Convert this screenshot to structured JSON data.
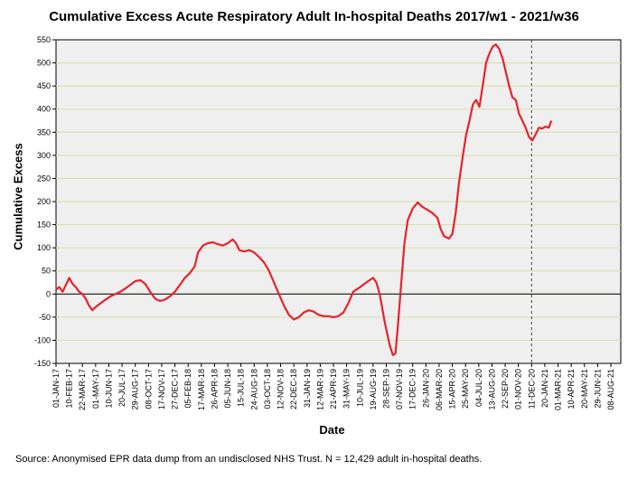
{
  "chart_data": {
    "type": "line",
    "title": "Cumulative Excess Acute Respiratory Adult In-hospital Deaths 2017/w1 - 2021/w36",
    "xlabel": "Date",
    "ylabel": "Cumulative Excess",
    "ylim": [
      -150,
      550
    ],
    "yticks": [
      -150,
      -100,
      -50,
      0,
      50,
      100,
      150,
      200,
      250,
      300,
      350,
      400,
      450,
      500,
      550
    ],
    "xlim_days": [
      0,
      1710
    ],
    "xtick_labels": [
      "01-JAN-17",
      "10-FEB-17",
      "22-MAR-17",
      "01-MAY-17",
      "10-JUN-17",
      "20-JUL-17",
      "29-AUG-17",
      "08-OCT-17",
      "17-NOV-17",
      "27-DEC-17",
      "05-FEB-18",
      "17-MAR-18",
      "26-APR-18",
      "05-JUN-18",
      "15-JUL-18",
      "24-AUG-18",
      "03-OCT-18",
      "12-NOV-18",
      "22-DEC-18",
      "31-JAN-19",
      "12-MAR-19",
      "21-APR-19",
      "31-MAY-19",
      "10-JUL-19",
      "19-AUG-19",
      "28-SEP-19",
      "07-NOV-19",
      "17-DEC-19",
      "26-JAN-20",
      "06-MAR-20",
      "15-APR-20",
      "25-MAY-20",
      "04-JUL-20",
      "13-AUG-20",
      "22-SEP-20",
      "01-NOV-20",
      "11-DEC-20",
      "20-JAN-21",
      "01-MAR-21",
      "10-APR-21",
      "20-MAY-21",
      "29-JUN-21",
      "08-AUG-21"
    ],
    "vline_day": 1440,
    "series": [
      {
        "name": "Cumulative Excess",
        "color": "#e8222b",
        "points": [
          [
            0,
            10
          ],
          [
            10,
            15
          ],
          [
            20,
            5
          ],
          [
            30,
            20
          ],
          [
            40,
            35
          ],
          [
            50,
            22
          ],
          [
            60,
            15
          ],
          [
            70,
            5
          ],
          [
            80,
            0
          ],
          [
            90,
            -10
          ],
          [
            100,
            -25
          ],
          [
            110,
            -35
          ],
          [
            120,
            -28
          ],
          [
            135,
            -20
          ],
          [
            150,
            -12
          ],
          [
            165,
            -5
          ],
          [
            180,
            0
          ],
          [
            195,
            5
          ],
          [
            210,
            12
          ],
          [
            225,
            20
          ],
          [
            240,
            28
          ],
          [
            255,
            30
          ],
          [
            270,
            22
          ],
          [
            285,
            5
          ],
          [
            300,
            -10
          ],
          [
            315,
            -15
          ],
          [
            330,
            -12
          ],
          [
            345,
            -5
          ],
          [
            360,
            5
          ],
          [
            375,
            20
          ],
          [
            390,
            35
          ],
          [
            405,
            45
          ],
          [
            420,
            60
          ],
          [
            430,
            90
          ],
          [
            445,
            105
          ],
          [
            460,
            110
          ],
          [
            475,
            112
          ],
          [
            490,
            108
          ],
          [
            505,
            105
          ],
          [
            520,
            110
          ],
          [
            535,
            118
          ],
          [
            545,
            110
          ],
          [
            555,
            95
          ],
          [
            570,
            92
          ],
          [
            585,
            95
          ],
          [
            600,
            90
          ],
          [
            615,
            80
          ],
          [
            630,
            68
          ],
          [
            645,
            50
          ],
          [
            660,
            25
          ],
          [
            675,
            0
          ],
          [
            690,
            -25
          ],
          [
            705,
            -45
          ],
          [
            720,
            -55
          ],
          [
            735,
            -50
          ],
          [
            750,
            -40
          ],
          [
            765,
            -35
          ],
          [
            780,
            -38
          ],
          [
            795,
            -45
          ],
          [
            810,
            -48
          ],
          [
            825,
            -48
          ],
          [
            840,
            -50
          ],
          [
            855,
            -48
          ],
          [
            870,
            -40
          ],
          [
            885,
            -20
          ],
          [
            900,
            5
          ],
          [
            915,
            12
          ],
          [
            930,
            20
          ],
          [
            945,
            28
          ],
          [
            960,
            35
          ],
          [
            970,
            25
          ],
          [
            980,
            0
          ],
          [
            995,
            -60
          ],
          [
            1010,
            -110
          ],
          [
            1020,
            -132
          ],
          [
            1028,
            -128
          ],
          [
            1035,
            -70
          ],
          [
            1045,
            20
          ],
          [
            1055,
            110
          ],
          [
            1065,
            160
          ],
          [
            1080,
            185
          ],
          [
            1095,
            198
          ],
          [
            1110,
            188
          ],
          [
            1125,
            182
          ],
          [
            1140,
            175
          ],
          [
            1155,
            165
          ],
          [
            1165,
            140
          ],
          [
            1175,
            125
          ],
          [
            1190,
            120
          ],
          [
            1200,
            130
          ],
          [
            1210,
            175
          ],
          [
            1220,
            240
          ],
          [
            1232,
            300
          ],
          [
            1242,
            345
          ],
          [
            1252,
            375
          ],
          [
            1262,
            410
          ],
          [
            1272,
            420
          ],
          [
            1282,
            405
          ],
          [
            1292,
            450
          ],
          [
            1302,
            500
          ],
          [
            1312,
            520
          ],
          [
            1322,
            535
          ],
          [
            1332,
            540
          ],
          [
            1342,
            530
          ],
          [
            1352,
            510
          ],
          [
            1362,
            480
          ],
          [
            1372,
            450
          ],
          [
            1382,
            425
          ],
          [
            1392,
            420
          ],
          [
            1402,
            390
          ],
          [
            1412,
            375
          ],
          [
            1422,
            360
          ],
          [
            1432,
            340
          ],
          [
            1442,
            332
          ],
          [
            1452,
            345
          ],
          [
            1462,
            360
          ],
          [
            1472,
            358
          ],
          [
            1482,
            362
          ],
          [
            1492,
            360
          ],
          [
            1500,
            375
          ]
        ]
      }
    ]
  },
  "source_note": "Source: Anonymised EPR data dump from an undisclosed NHS Trust. N = 12,429 adult in-hospital deaths."
}
